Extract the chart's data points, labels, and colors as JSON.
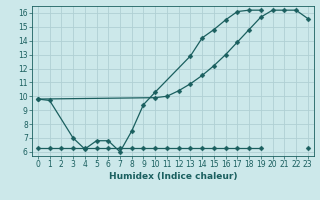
{
  "xlabel": "Humidex (Indice chaleur)",
  "bg_color": "#cce8ea",
  "grid_color": "#b0d0d4",
  "line_color": "#1a5f5f",
  "xlim": [
    -0.5,
    23.5
  ],
  "ylim": [
    5.7,
    16.5
  ],
  "xticks": [
    0,
    1,
    2,
    3,
    4,
    5,
    6,
    7,
    8,
    9,
    10,
    11,
    12,
    13,
    14,
    15,
    16,
    17,
    18,
    19,
    20,
    21,
    22,
    23
  ],
  "yticks": [
    6,
    7,
    8,
    9,
    10,
    11,
    12,
    13,
    14,
    15,
    16
  ],
  "line1_x": [
    0,
    1,
    3,
    4,
    5,
    6,
    7,
    8,
    9,
    10,
    13,
    14,
    15,
    16,
    17,
    18,
    19
  ],
  "line1_y": [
    9.8,
    9.7,
    7.0,
    6.2,
    6.8,
    6.8,
    6.0,
    7.5,
    9.4,
    10.3,
    12.9,
    14.2,
    14.8,
    15.5,
    16.1,
    16.2,
    16.2
  ],
  "line2_x": [
    0,
    10,
    11,
    12,
    13,
    14,
    15,
    16,
    17,
    18,
    19,
    20,
    21,
    22,
    23
  ],
  "line2_y": [
    9.8,
    9.9,
    10.0,
    10.4,
    10.9,
    11.5,
    12.2,
    13.0,
    13.9,
    14.8,
    15.7,
    16.2,
    16.2,
    16.2,
    15.6
  ],
  "line3_x": [
    0,
    1,
    2,
    3,
    4,
    5,
    6,
    7,
    8,
    9,
    10,
    11,
    12,
    13,
    14,
    15,
    16,
    17,
    18,
    19,
    23
  ],
  "line3_y": [
    6.3,
    6.3,
    6.3,
    6.3,
    6.3,
    6.3,
    6.3,
    6.3,
    6.3,
    6.3,
    6.3,
    6.3,
    6.3,
    6.3,
    6.3,
    6.3,
    6.3,
    6.3,
    6.3,
    6.3,
    6.3
  ],
  "line3_break_after": 19,
  "marker_size": 2.5,
  "linewidth": 0.9,
  "tick_fontsize": 5.5,
  "xlabel_fontsize": 6.5
}
